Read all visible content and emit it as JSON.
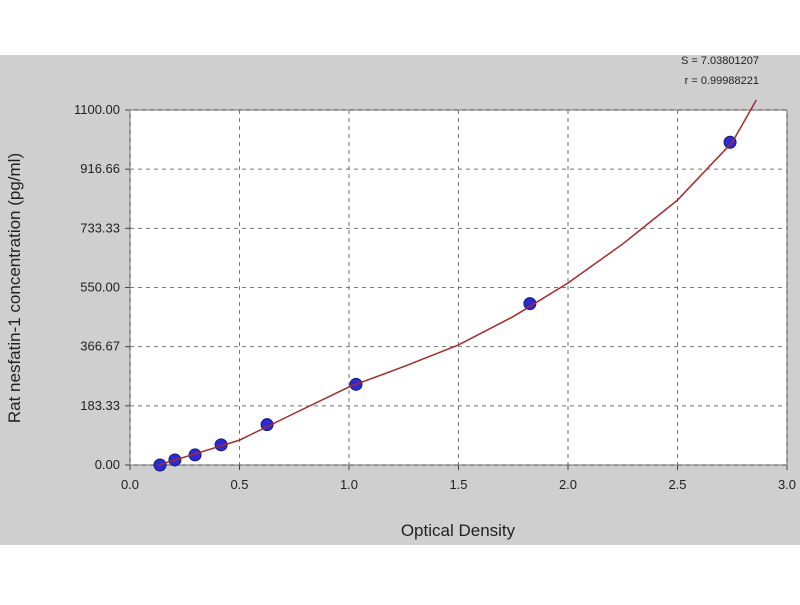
{
  "chart_data": {
    "type": "scatter",
    "xlabel": "Optical Density",
    "ylabel": "Rat nesfatin-1 concentration (pg/ml)",
    "annotations": [
      "S = 7.03801207",
      "r = 0.99988221"
    ],
    "xlim": [
      0,
      3
    ],
    "ylim": [
      0,
      1100
    ],
    "xticks": [
      {
        "value": 0,
        "label": "0.0"
      },
      0.5,
      {
        "value": 1,
        "label": "1.0"
      },
      1.5,
      {
        "value": 2,
        "label": "2.0"
      },
      2.5,
      {
        "value": 3,
        "label": "3.0"
      }
    ],
    "yticks": [
      {
        "value": 0,
        "label": "0.00"
      },
      183.33,
      366.67,
      {
        "value": 550,
        "label": "550.00"
      },
      733.33,
      916.66,
      {
        "value": 1100,
        "label": "1100.00"
      }
    ],
    "grid": true,
    "series": [
      {
        "color": "#2a2ad6",
        "x": [
          0.137,
          0.205,
          0.297,
          0.416,
          0.626,
          1.032,
          1.826,
          2.74
        ],
        "values": [
          0,
          15.6,
          31.25,
          62.5,
          125,
          250,
          500,
          1000
        ]
      },
      {
        "color": "#a52a2a",
        "line": true,
        "x": [
          0.13,
          0.3,
          0.5,
          0.75,
          1.0,
          1.25,
          1.5,
          1.75,
          2.0,
          2.25,
          2.5,
          2.75,
          2.86
        ],
        "values": [
          0,
          35,
          77,
          160,
          242,
          305,
          372,
          460,
          564,
          685,
          821,
          1000,
          1131
        ]
      }
    ]
  }
}
